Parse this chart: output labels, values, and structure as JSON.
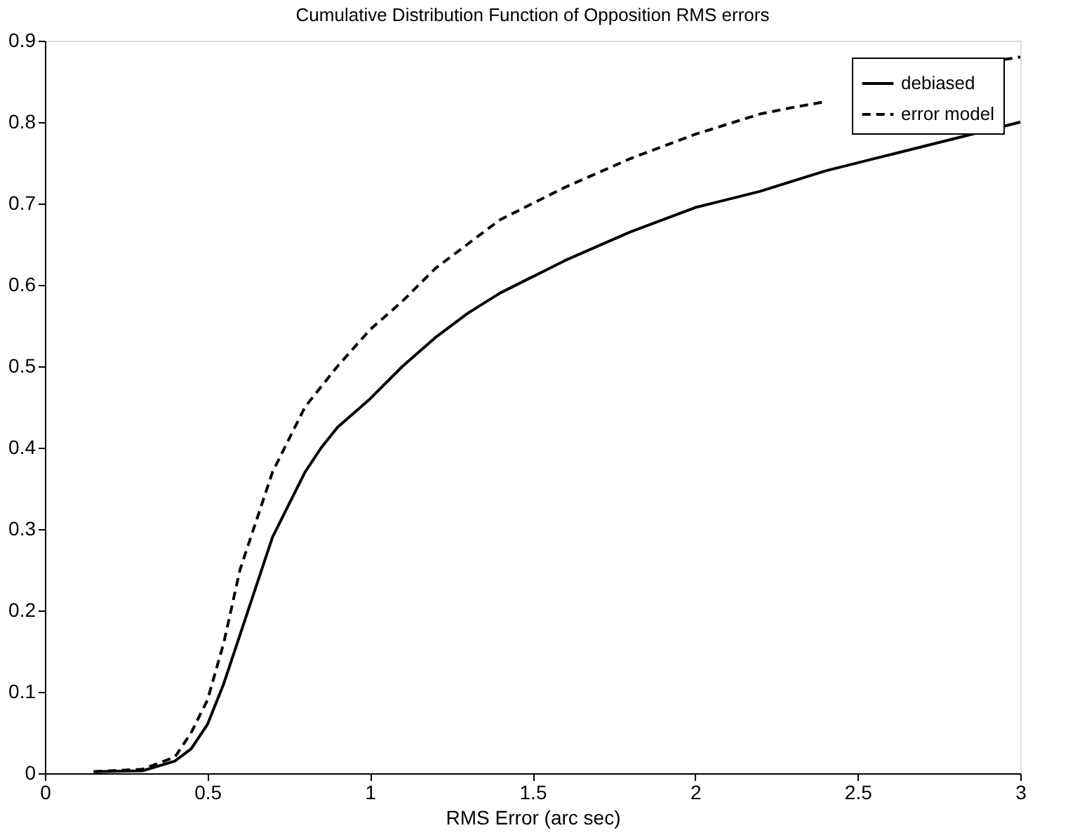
{
  "chart_data": {
    "type": "line",
    "title": "Cumulative Distribution Function of Opposition RMS errors",
    "xlabel": "RMS Error (arc sec)",
    "xlim": [
      0,
      3
    ],
    "ylim": [
      0,
      0.9
    ],
    "xticks": [
      0,
      0.5,
      1,
      1.5,
      2,
      2.5,
      3
    ],
    "yticks": [
      0,
      0.1,
      0.2,
      0.3,
      0.4,
      0.5,
      0.6,
      0.7,
      0.8,
      0.9
    ],
    "grid": false,
    "legend": "top right",
    "series": [
      {
        "name": "debiased",
        "color": "#000000",
        "line_style": "solid",
        "x": [
          0.15,
          0.3,
          0.4,
          0.45,
          0.5,
          0.55,
          0.6,
          0.65,
          0.7,
          0.75,
          0.8,
          0.85,
          0.9,
          1.0,
          1.1,
          1.2,
          1.3,
          1.4,
          1.5,
          1.6,
          1.8,
          2.0,
          2.2,
          2.4,
          2.6,
          2.8,
          3.0
        ],
        "values": [
          0.002,
          0.003,
          0.015,
          0.03,
          0.06,
          0.11,
          0.17,
          0.23,
          0.29,
          0.33,
          0.37,
          0.4,
          0.425,
          0.46,
          0.5,
          0.535,
          0.565,
          0.59,
          0.61,
          0.63,
          0.665,
          0.695,
          0.715,
          0.74,
          0.76,
          0.78,
          0.8
        ]
      },
      {
        "name": "error model",
        "color": "#000000",
        "line_style": "dashed",
        "x": [
          0.15,
          0.3,
          0.4,
          0.45,
          0.5,
          0.55,
          0.6,
          0.65,
          0.7,
          0.75,
          0.8,
          0.9,
          1.0,
          1.1,
          1.2,
          1.3,
          1.4,
          1.5,
          1.6,
          1.8,
          2.0,
          2.2,
          2.3,
          2.4,
          2.6,
          2.8,
          2.95,
          3.0
        ],
        "values": [
          0.002,
          0.005,
          0.02,
          0.05,
          0.09,
          0.16,
          0.25,
          0.31,
          0.37,
          0.41,
          0.45,
          0.5,
          0.545,
          0.58,
          0.62,
          0.65,
          0.68,
          0.7,
          0.72,
          0.755,
          0.785,
          0.81,
          0.818,
          0.825,
          null,
          null,
          0.877,
          0.88
        ]
      }
    ]
  }
}
